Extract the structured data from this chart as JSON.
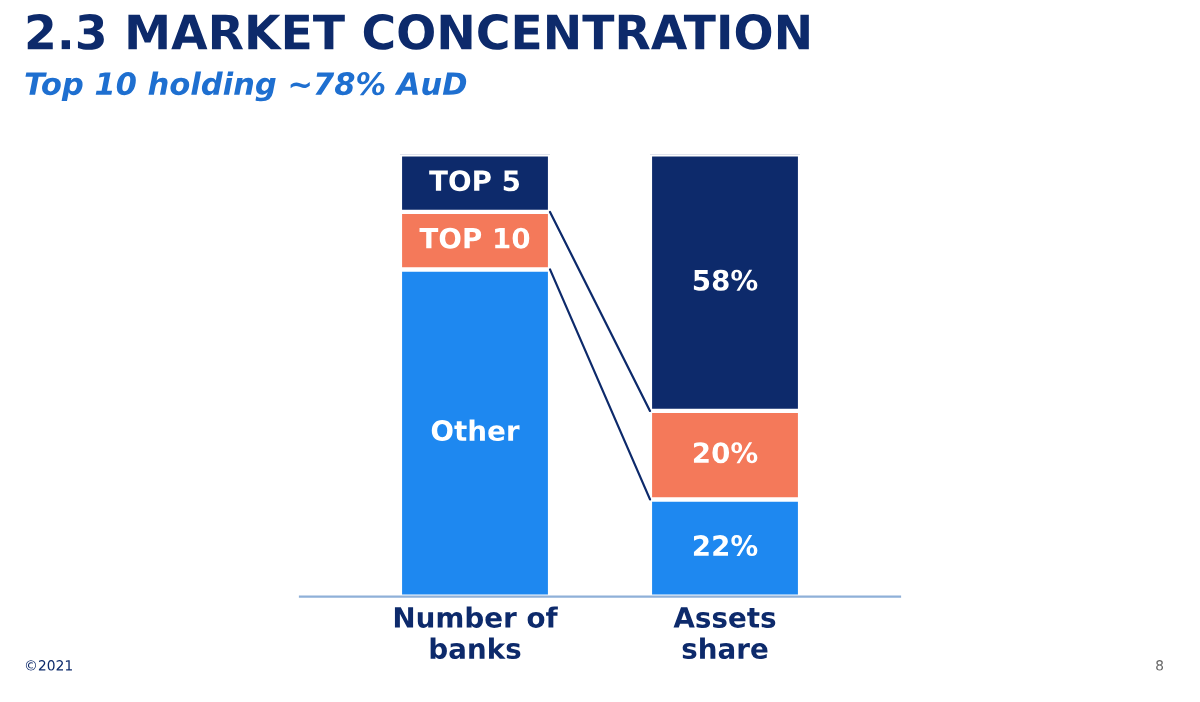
{
  "chart_data": {
    "type": "bar",
    "title": "2.3 MARKET CONCENTRATION",
    "subtitle": "Top 10 holding ~78% AuD",
    "categories": [
      "Number of\nbanks",
      "Assets\nshare"
    ],
    "stacked": true,
    "series": [
      {
        "name": "Other",
        "color": "#1e88f0",
        "values": [
          74,
          22
        ],
        "value_labels": [
          null,
          "22%"
        ]
      },
      {
        "name": "TOP 10",
        "color": "#f4795a",
        "values": [
          13,
          20
        ],
        "value_labels": [
          null,
          "20%"
        ]
      },
      {
        "name": "TOP 5",
        "color": "#0d2a6b",
        "values": [
          13,
          58
        ],
        "value_labels": [
          null,
          "58%"
        ]
      }
    ],
    "annotations": [
      "©2021",
      "8"
    ]
  }
}
